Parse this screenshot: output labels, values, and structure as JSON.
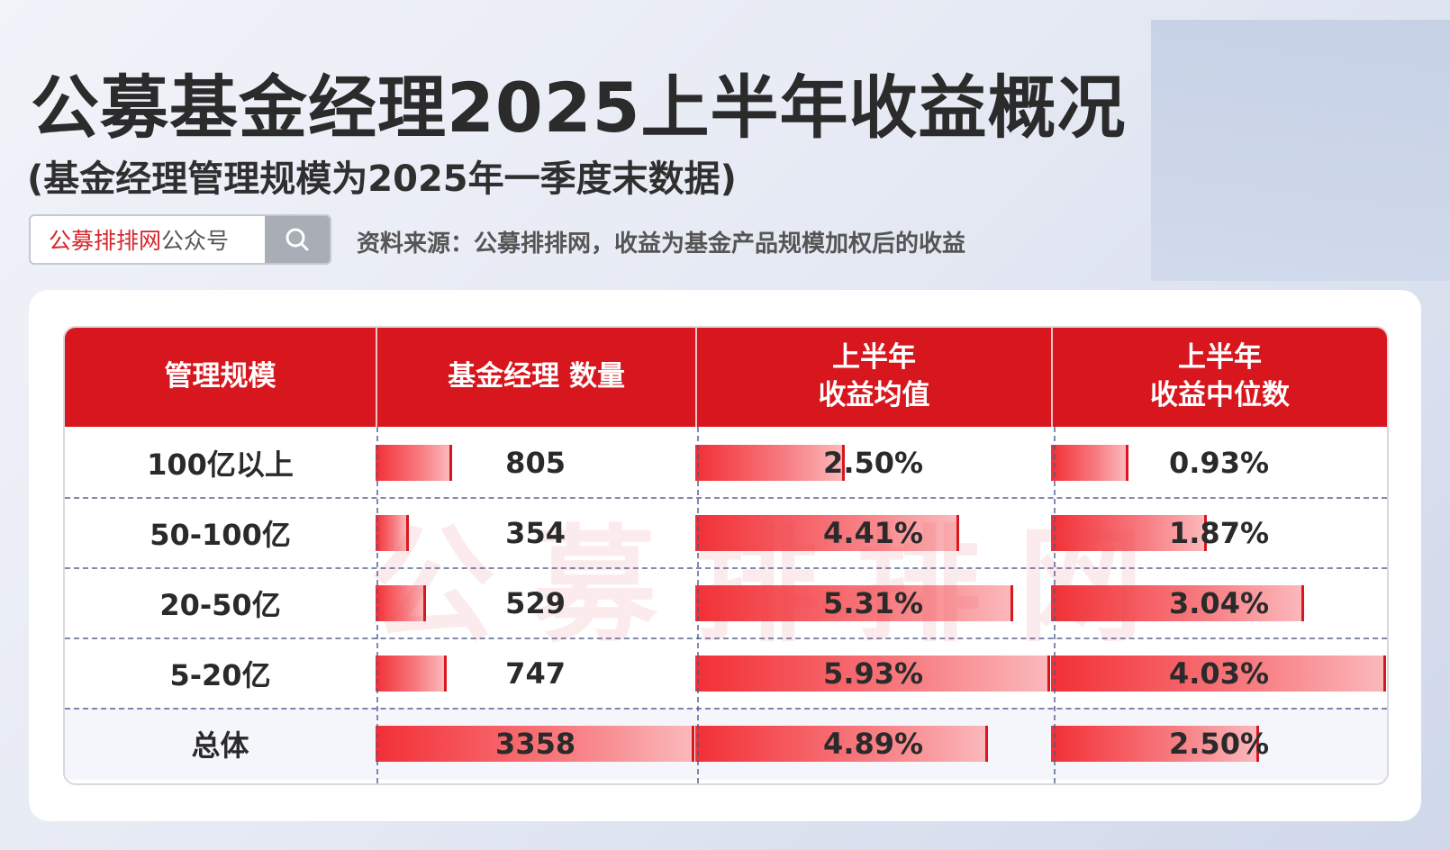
{
  "header": {
    "title": "公募基金经理2025上半年收益概况",
    "subtitle": "(基金经理管理规模为2025年一季度末数据)"
  },
  "search": {
    "brand": "公募排排网",
    "suffix": "公众号",
    "icon": "search-icon"
  },
  "source_note": "资料来源：公募排排网，收益为基金产品规模加权后的收益",
  "watermark": "公募排排网",
  "table": {
    "headers": [
      "管理规模",
      "基金经理 数量",
      "上半年\n收益均值",
      "上半年\n收益中位数"
    ],
    "rows": [
      {
        "scale": "100亿以上",
        "count": "805",
        "count_val": 805,
        "mean": "2.50%",
        "mean_val": 2.5,
        "median": "0.93%",
        "median_val": 0.93
      },
      {
        "scale": "50-100亿",
        "count": "354",
        "count_val": 354,
        "mean": "4.41%",
        "mean_val": 4.41,
        "median": "1.87%",
        "median_val": 1.87
      },
      {
        "scale": "20-50亿",
        "count": "529",
        "count_val": 529,
        "mean": "5.31%",
        "mean_val": 5.31,
        "median": "3.04%",
        "median_val": 3.04
      },
      {
        "scale": "5-20亿",
        "count": "747",
        "count_val": 747,
        "mean": "5.93%",
        "mean_val": 5.93,
        "median": "4.03%",
        "median_val": 4.03
      },
      {
        "scale": "总体",
        "count": "3358",
        "count_val": 3358,
        "mean": "4.89%",
        "mean_val": 4.89,
        "median": "2.50%",
        "median_val": 2.5
      }
    ]
  },
  "colors": {
    "header_red": "#d7161e",
    "bar_start": "#f23036",
    "bar_end": "#fbb8bb"
  }
}
